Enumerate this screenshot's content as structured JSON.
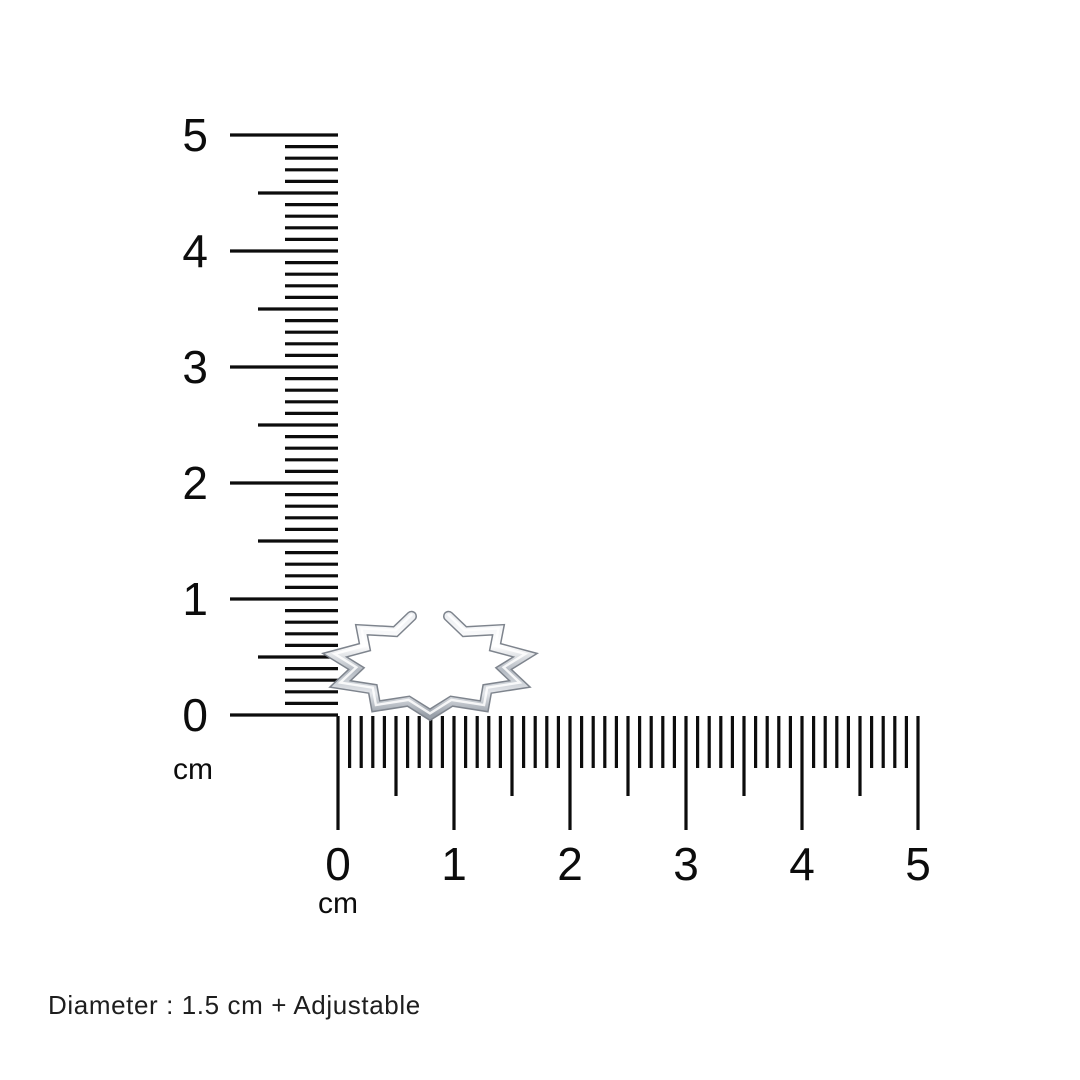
{
  "page": {
    "background": "#ffffff",
    "ink_color": "#0c0c0c",
    "caption_color": "#1e1e1e"
  },
  "vertical_ruler": {
    "unit_label": "cm",
    "numbers": [
      "0",
      "1",
      "2",
      "3",
      "4",
      "5"
    ],
    "min": 0,
    "max": 5,
    "minor_ticks_per_cm": 10
  },
  "horizontal_ruler": {
    "unit_label": "cm",
    "numbers": [
      "0",
      "1",
      "2",
      "3",
      "4",
      "5"
    ],
    "min": 0,
    "max": 5,
    "minor_ticks_per_cm": 10
  },
  "product": {
    "alt": "Silver zigzag open adjustable ring",
    "metal_colors": {
      "edge": "#7e848d",
      "light": "#f7f8fa",
      "mid": "#b9bfc7",
      "dark": "#989fa8",
      "highlight": "#ffffff"
    }
  },
  "caption": {
    "text": "Diameter : 1.5 cm + Adjustable"
  }
}
